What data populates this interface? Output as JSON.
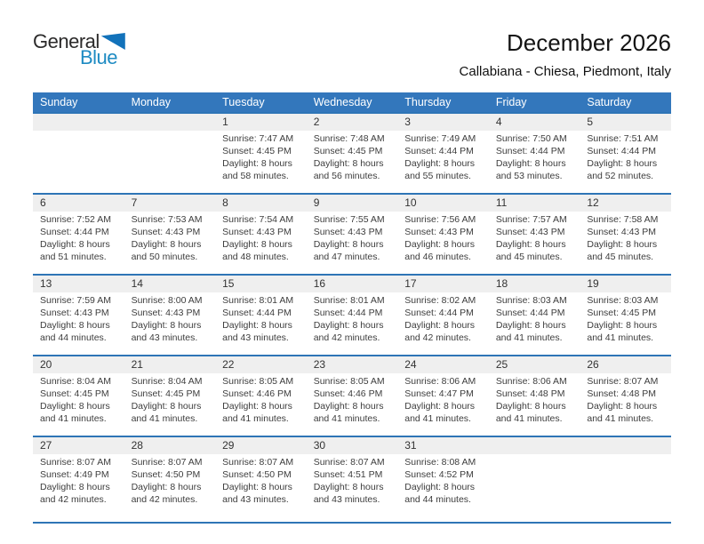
{
  "logo": {
    "part1": "General",
    "part2": "Blue"
  },
  "header": {
    "title": "December 2026",
    "subtitle": "Callabiana - Chiesa, Piedmont, Italy"
  },
  "labels": {
    "sunrise": "Sunrise:",
    "sunset": "Sunset:",
    "daylight": "Daylight:"
  },
  "colors": {
    "header_bg": "#3377BC",
    "row_line": "#2E75B6",
    "strip_bg": "#EFEFEF",
    "logo_blue": "#1E8BC3",
    "triangle_blue": "#1272BA"
  },
  "calendar": {
    "day_headers": [
      "Sunday",
      "Monday",
      "Tuesday",
      "Wednesday",
      "Thursday",
      "Friday",
      "Saturday"
    ],
    "weeks": [
      [
        {
          "day": ""
        },
        {
          "day": ""
        },
        {
          "day": "1",
          "sunrise": "7:47 AM",
          "sunset": "4:45 PM",
          "daylight": "8 hours and 58 minutes."
        },
        {
          "day": "2",
          "sunrise": "7:48 AM",
          "sunset": "4:45 PM",
          "daylight": "8 hours and 56 minutes."
        },
        {
          "day": "3",
          "sunrise": "7:49 AM",
          "sunset": "4:44 PM",
          "daylight": "8 hours and 55 minutes."
        },
        {
          "day": "4",
          "sunrise": "7:50 AM",
          "sunset": "4:44 PM",
          "daylight": "8 hours and 53 minutes."
        },
        {
          "day": "5",
          "sunrise": "7:51 AM",
          "sunset": "4:44 PM",
          "daylight": "8 hours and 52 minutes."
        }
      ],
      [
        {
          "day": "6",
          "sunrise": "7:52 AM",
          "sunset": "4:44 PM",
          "daylight": "8 hours and 51 minutes."
        },
        {
          "day": "7",
          "sunrise": "7:53 AM",
          "sunset": "4:43 PM",
          "daylight": "8 hours and 50 minutes."
        },
        {
          "day": "8",
          "sunrise": "7:54 AM",
          "sunset": "4:43 PM",
          "daylight": "8 hours and 48 minutes."
        },
        {
          "day": "9",
          "sunrise": "7:55 AM",
          "sunset": "4:43 PM",
          "daylight": "8 hours and 47 minutes."
        },
        {
          "day": "10",
          "sunrise": "7:56 AM",
          "sunset": "4:43 PM",
          "daylight": "8 hours and 46 minutes."
        },
        {
          "day": "11",
          "sunrise": "7:57 AM",
          "sunset": "4:43 PM",
          "daylight": "8 hours and 45 minutes."
        },
        {
          "day": "12",
          "sunrise": "7:58 AM",
          "sunset": "4:43 PM",
          "daylight": "8 hours and 45 minutes."
        }
      ],
      [
        {
          "day": "13",
          "sunrise": "7:59 AM",
          "sunset": "4:43 PM",
          "daylight": "8 hours and 44 minutes."
        },
        {
          "day": "14",
          "sunrise": "8:00 AM",
          "sunset": "4:43 PM",
          "daylight": "8 hours and 43 minutes."
        },
        {
          "day": "15",
          "sunrise": "8:01 AM",
          "sunset": "4:44 PM",
          "daylight": "8 hours and 43 minutes."
        },
        {
          "day": "16",
          "sunrise": "8:01 AM",
          "sunset": "4:44 PM",
          "daylight": "8 hours and 42 minutes."
        },
        {
          "day": "17",
          "sunrise": "8:02 AM",
          "sunset": "4:44 PM",
          "daylight": "8 hours and 42 minutes."
        },
        {
          "day": "18",
          "sunrise": "8:03 AM",
          "sunset": "4:44 PM",
          "daylight": "8 hours and 41 minutes."
        },
        {
          "day": "19",
          "sunrise": "8:03 AM",
          "sunset": "4:45 PM",
          "daylight": "8 hours and 41 minutes."
        }
      ],
      [
        {
          "day": "20",
          "sunrise": "8:04 AM",
          "sunset": "4:45 PM",
          "daylight": "8 hours and 41 minutes."
        },
        {
          "day": "21",
          "sunrise": "8:04 AM",
          "sunset": "4:45 PM",
          "daylight": "8 hours and 41 minutes."
        },
        {
          "day": "22",
          "sunrise": "8:05 AM",
          "sunset": "4:46 PM",
          "daylight": "8 hours and 41 minutes."
        },
        {
          "day": "23",
          "sunrise": "8:05 AM",
          "sunset": "4:46 PM",
          "daylight": "8 hours and 41 minutes."
        },
        {
          "day": "24",
          "sunrise": "8:06 AM",
          "sunset": "4:47 PM",
          "daylight": "8 hours and 41 minutes."
        },
        {
          "day": "25",
          "sunrise": "8:06 AM",
          "sunset": "4:48 PM",
          "daylight": "8 hours and 41 minutes."
        },
        {
          "day": "26",
          "sunrise": "8:07 AM",
          "sunset": "4:48 PM",
          "daylight": "8 hours and 41 minutes."
        }
      ],
      [
        {
          "day": "27",
          "sunrise": "8:07 AM",
          "sunset": "4:49 PM",
          "daylight": "8 hours and 42 minutes."
        },
        {
          "day": "28",
          "sunrise": "8:07 AM",
          "sunset": "4:50 PM",
          "daylight": "8 hours and 42 minutes."
        },
        {
          "day": "29",
          "sunrise": "8:07 AM",
          "sunset": "4:50 PM",
          "daylight": "8 hours and 43 minutes."
        },
        {
          "day": "30",
          "sunrise": "8:07 AM",
          "sunset": "4:51 PM",
          "daylight": "8 hours and 43 minutes."
        },
        {
          "day": "31",
          "sunrise": "8:08 AM",
          "sunset": "4:52 PM",
          "daylight": "8 hours and 44 minutes."
        },
        {
          "day": ""
        },
        {
          "day": ""
        }
      ]
    ]
  }
}
